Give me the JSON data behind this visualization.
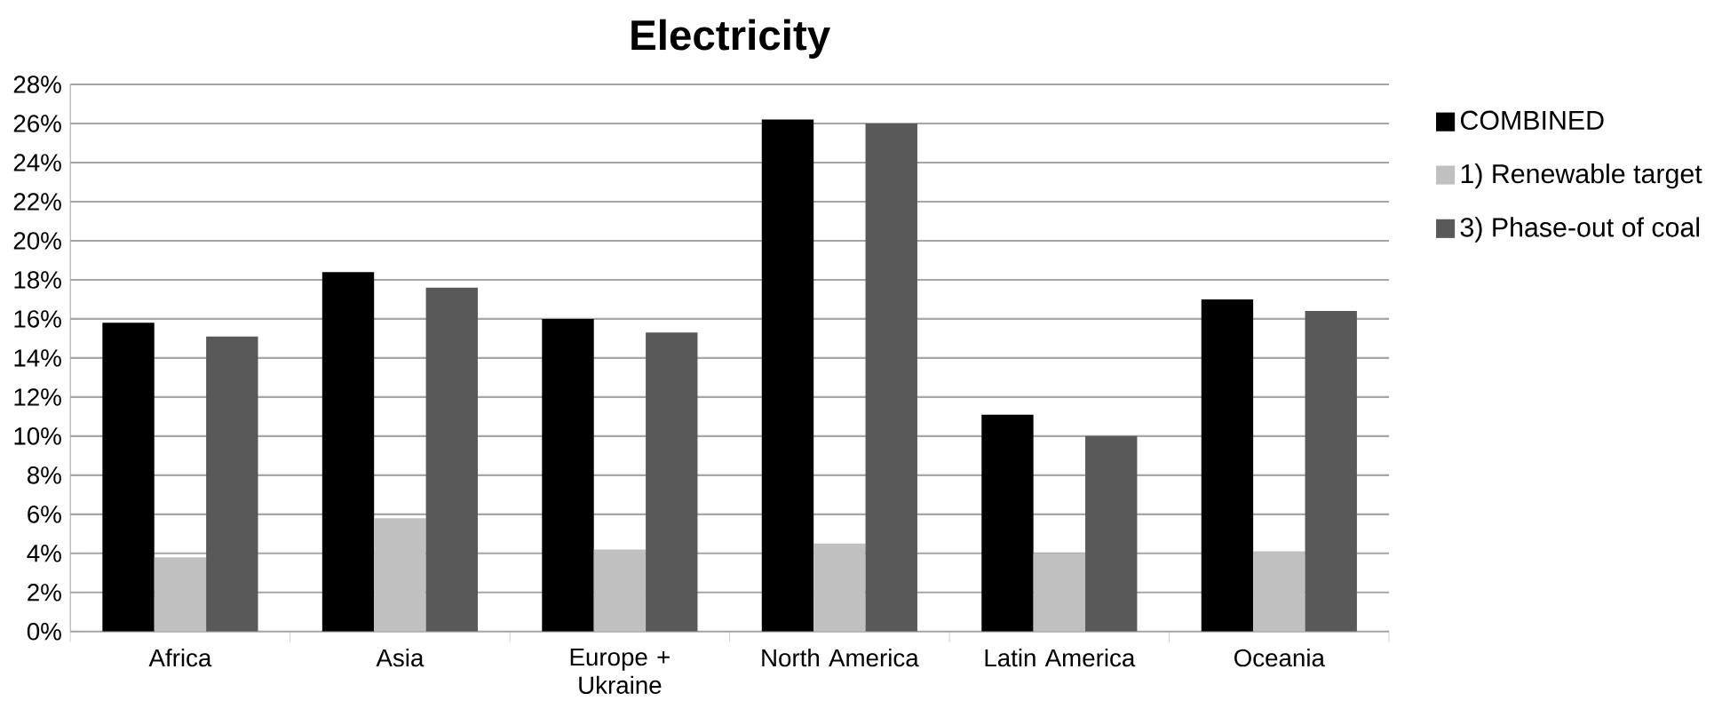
{
  "chart_data": {
    "type": "bar",
    "title": "Electricity",
    "categories": [
      "Africa",
      "Asia",
      "Europe + Ukraine",
      "North America",
      "Latin America",
      "Oceania"
    ],
    "series": [
      {
        "name": "COMBINED",
        "color": "#000000",
        "values": [
          15.8,
          18.4,
          16.0,
          26.2,
          11.1,
          17.0
        ]
      },
      {
        "name": "1) Renewable target",
        "color": "#c0c0c0",
        "values": [
          3.8,
          5.8,
          4.2,
          4.5,
          4.0,
          4.1
        ]
      },
      {
        "name": "3) Phase-out of coal",
        "color": "#595959",
        "values": [
          15.1,
          17.6,
          15.3,
          26.0,
          10.0,
          16.4
        ]
      }
    ],
    "ylim": [
      0,
      28
    ],
    "yticks": [
      {
        "value": 0,
        "label": "0%"
      },
      {
        "value": 2,
        "label": "2%"
      },
      {
        "value": 4,
        "label": "4%"
      },
      {
        "value": 6,
        "label": "6%"
      },
      {
        "value": 8,
        "label": "8%"
      },
      {
        "value": 10,
        "label": "10%"
      },
      {
        "value": 12,
        "label": "12%"
      },
      {
        "value": 14,
        "label": "14%"
      },
      {
        "value": 16,
        "label": "16%"
      },
      {
        "value": 18,
        "label": "18%"
      },
      {
        "value": 20,
        "label": "20%"
      },
      {
        "value": 22,
        "label": "22%"
      },
      {
        "value": 24,
        "label": "24%"
      },
      {
        "value": 26,
        "label": "26%"
      },
      {
        "value": 28,
        "label": "28%"
      }
    ],
    "grid": "y",
    "legend": "right"
  }
}
